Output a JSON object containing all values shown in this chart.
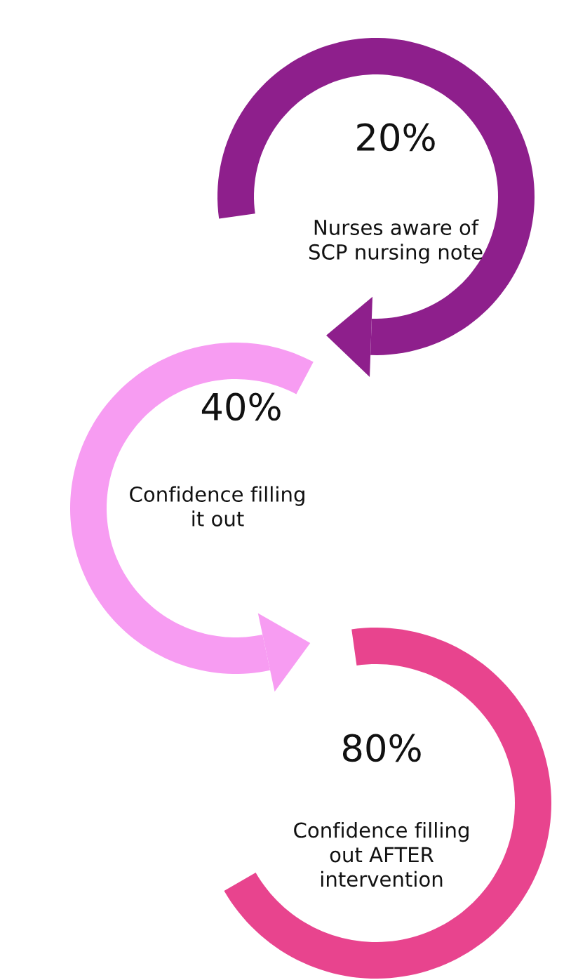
{
  "chart_data": {
    "type": "other",
    "categories": [
      "Nurses aware of\nSCP nursing note",
      "Confidence filling\nit out",
      "Confidence filling\nout AFTER\nintervention"
    ],
    "values": [
      20,
      40,
      80
    ],
    "value_labels": [
      "20%",
      "40%",
      "80%"
    ],
    "colors": [
      "#8e1f8c",
      "#f79cf2",
      "#e8448e"
    ]
  }
}
